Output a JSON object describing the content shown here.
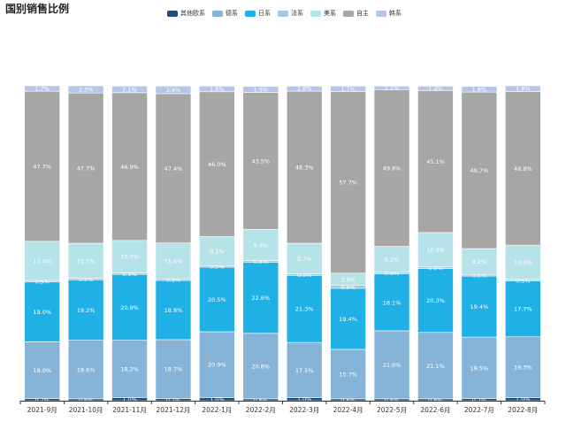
{
  "title": "国别销售比例",
  "chart_data": {
    "type": "bar",
    "stacked": true,
    "categories": [
      "2021-9月",
      "2021-10月",
      "2021-11月",
      "2021-12月",
      "2022-1月",
      "2022-2月",
      "2022-3月",
      "2022-4月",
      "2022-5月",
      "2022-6月",
      "2022-7月",
      "2022-8月"
    ],
    "ylim": [
      0,
      100
    ],
    "legend_position": "top",
    "series": [
      {
        "name": "其他欧系",
        "color": "#1f4e79",
        "values": [
          0.7,
          0.6,
          1.0,
          0.7,
          1.0,
          0.6,
          1.0,
          0.6,
          0.6,
          0.6,
          0.7,
          1.0
        ],
        "labels": [
          "0.7%",
          "0.6%",
          "1.0%",
          "0.7%",
          "1.0%",
          "0.6%",
          "1.0%",
          "0.6%",
          "0.6%",
          "0.6%",
          "0.7%",
          "1.0%"
        ]
      },
      {
        "name": "德系",
        "color": "#86b4d8",
        "values": [
          18.0,
          18.6,
          18.2,
          18.7,
          20.9,
          20.8,
          17.5,
          15.7,
          21.6,
          21.1,
          19.5,
          19.3
        ],
        "labels": [
          "18.0%",
          "18.6%",
          "18.2%",
          "18.7%",
          "20.9%",
          "20.8%",
          "17.5%",
          "15.7%",
          "21.6%",
          "21.1%",
          "19.5%",
          "19.3%"
        ]
      },
      {
        "name": "日系",
        "color": "#1fb0e6",
        "values": [
          19.0,
          19.2,
          20.9,
          18.8,
          20.5,
          22.6,
          21.3,
          19.4,
          18.1,
          20.3,
          19.4,
          17.7
        ],
        "labels": [
          "19.0%",
          "19.2%",
          "20.9%",
          "18.8%",
          "20.5%",
          "22.6%",
          "21.3%",
          "19.4%",
          "18.1%",
          "20.3%",
          "19.4%",
          "17.7%"
        ]
      },
      {
        "name": "法系",
        "color": "#a9c4e3",
        "values": [
          0.5,
          0.5,
          0.5,
          0.5,
          0.5,
          0.5,
          0.5,
          0.9,
          0.5,
          0.5,
          0.5,
          0.5
        ],
        "labels": [
          "0.5%",
          "0.5%",
          "0.5%",
          "0.5%",
          "0.5%",
          "0.5%",
          "0.5%",
          "0.9%",
          "0.5%",
          "0.5%",
          "0.5%",
          "0.5%"
        ]
      },
      {
        "name": "美系",
        "color": "#b5e3e8",
        "values": [
          12.4,
          11.1,
          10.3,
          11.4,
          9.2,
          9.9,
          9.7,
          3.9,
          8.2,
          10.9,
          8.2,
          10.9
        ],
        "labels": [
          "12.4%",
          "11.1%",
          "10.3%",
          "11.4%",
          "9.2%",
          "9.9%",
          "9.7%",
          "3.9%",
          "8.2%",
          "10.9%",
          "8.2%",
          "10.9%"
        ]
      },
      {
        "name": "自主",
        "color": "#a6a6a6",
        "values": [
          47.7,
          47.7,
          46.9,
          47.4,
          46.0,
          43.5,
          48.3,
          57.7,
          49.8,
          45.1,
          49.7,
          48.8
        ],
        "labels": [
          "47.7%",
          "47.7%",
          "46.9%",
          "47.4%",
          "46.0%",
          "43.5%",
          "48.3%",
          "57.7%",
          "49.8%",
          "45.1%",
          "49.7%",
          "48.8%"
        ]
      },
      {
        "name": "韩系",
        "color": "#b4c7e7",
        "values": [
          1.7,
          2.3,
          2.1,
          2.4,
          1.8,
          1.9,
          1.6,
          1.7,
          1.1,
          1.4,
          1.8,
          1.8
        ],
        "labels": [
          "1.7%",
          "2.3%",
          "2.1%",
          "2.4%",
          "1.8%",
          "1.9%",
          "1.6%",
          "1.7%",
          "1.1%",
          "1.4%",
          "1.8%",
          "1.8%"
        ]
      }
    ]
  }
}
